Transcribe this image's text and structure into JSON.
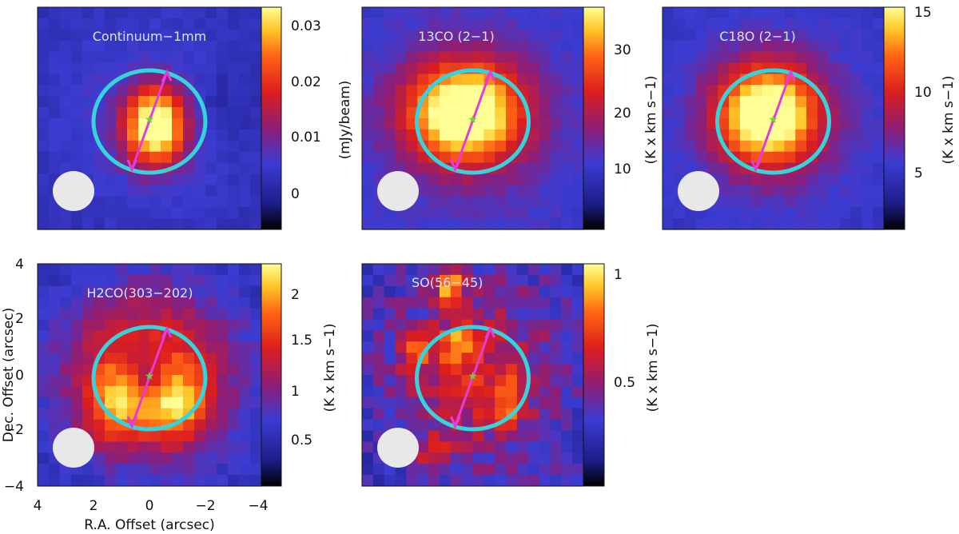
{
  "figure": {
    "xlabel": "R.A. Offset (arcsec)",
    "ylabel": "Dec. Offset (arcsec)",
    "xticks": [
      "4",
      "2",
      "0",
      "−2",
      "−4"
    ],
    "yticks": [
      "4",
      "2",
      "0",
      "−2",
      "−4"
    ]
  },
  "chart_data": [
    {
      "type": "heatmap",
      "title": "Continuum−1mm",
      "colorbar_label": "(mJy/beam)",
      "colorbar_ticks": [
        "0.03",
        "0.02",
        "0.01",
        "0"
      ],
      "colorbar_tick_values": [
        0.03,
        0.02,
        0.01,
        0.0
      ],
      "colorbar_range": [
        -0.005,
        0.033
      ],
      "peak_offset_arcsec": [
        -0.2,
        -0.3
      ],
      "colormap": [
        "#000000",
        "#1e1e8c",
        "#3c3cd2",
        "#8c1e78",
        "#dc1e1e",
        "#ff6414",
        "#ffc828",
        "#ffff96"
      ]
    },
    {
      "type": "heatmap",
      "title": "13CO (2−1)",
      "colorbar_label": "(K x km s−1)",
      "colorbar_ticks": [
        "30",
        "20",
        "10"
      ],
      "colorbar_tick_values": [
        30,
        20,
        10
      ],
      "colorbar_range": [
        2,
        37
      ],
      "peak_offset_arcsec": [
        0.3,
        0.2
      ]
    },
    {
      "type": "heatmap",
      "title": "C18O (2−1)",
      "colorbar_label": "(K x km s−1)",
      "colorbar_ticks": [
        "15",
        "10",
        "5"
      ],
      "colorbar_tick_values": [
        15,
        10,
        5
      ],
      "colorbar_range": [
        1,
        15
      ],
      "peak_offset_arcsec": [
        0.2,
        0.1
      ]
    },
    {
      "type": "heatmap",
      "title": "H2CO(303−202)",
      "colorbar_label": "(K x km s−1)",
      "colorbar_ticks": [
        "2",
        "1.5",
        "1",
        "0.5"
      ],
      "colorbar_tick_values": [
        2,
        1.5,
        1,
        0.5
      ],
      "colorbar_range": [
        0.1,
        2.3
      ],
      "peak_offset_arcsec": [
        0.5,
        -0.9
      ]
    },
    {
      "type": "heatmap",
      "title": "SO(56−45)",
      "colorbar_label": "(K x km s−1)",
      "colorbar_ticks": [
        "1",
        "0.5"
      ],
      "colorbar_tick_values": [
        1,
        0.5
      ],
      "colorbar_range": [
        0.05,
        1.05
      ],
      "peak_offset_arcsec": [
        1.0,
        3.2
      ]
    }
  ],
  "overlays": {
    "ellipse_color": "#35d3dc",
    "arrow_color": "#e63bd6",
    "beam_color": "#e8e8e8",
    "star_color": "#6fcf3f"
  }
}
